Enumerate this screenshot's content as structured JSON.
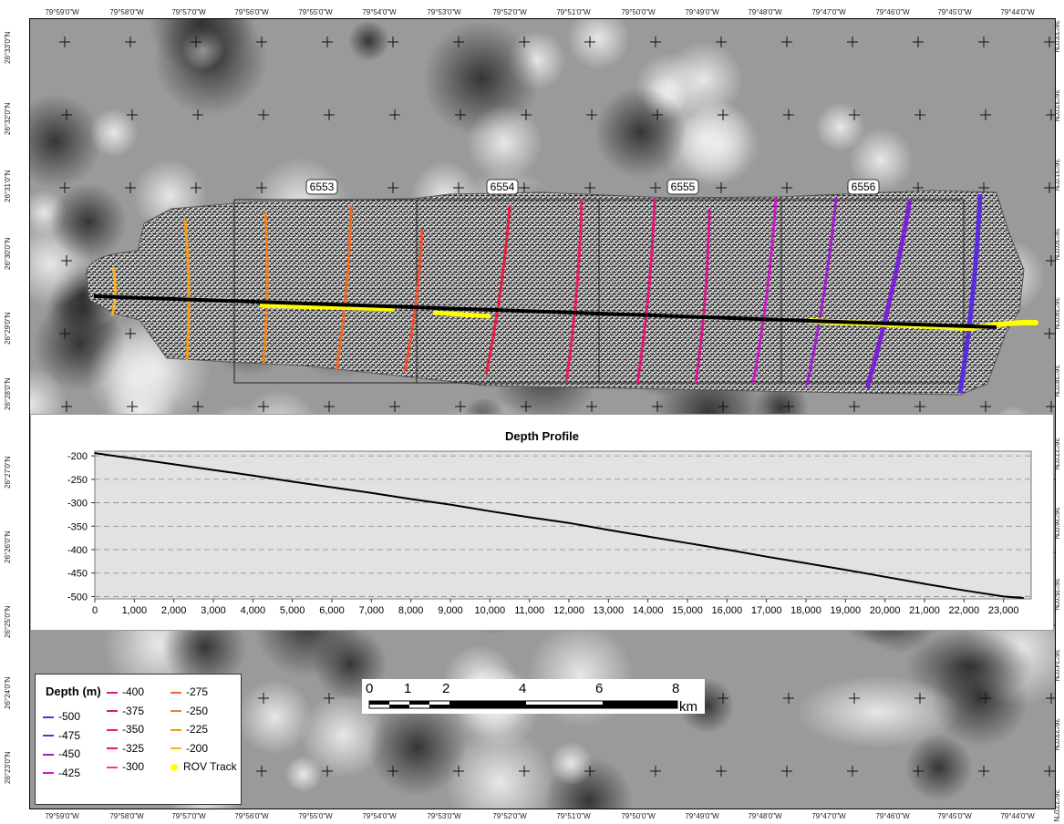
{
  "map": {
    "top_longitudes": [
      "79°59'0\"W",
      "79°58'0\"W",
      "79°57'0\"W",
      "79°56'0\"W",
      "79°55'0\"W",
      "79°54'0\"W",
      "79°53'0\"W",
      "79°52'0\"W",
      "79°51'0\"W",
      "79°50'0\"W",
      "79°49'0\"W",
      "79°48'0\"W",
      "79°47'0\"W",
      "79°46'0\"W",
      "79°45'0\"W",
      "79°44'0\"W"
    ],
    "bottom_longitudes": [
      "79°59'0\"W",
      "79°58'0\"W",
      "79°57'0\"W",
      "79°56'0\"W",
      "79°55'0\"W",
      "79°54'0\"W",
      "79°53'0\"W",
      "79°52'0\"W",
      "79°51'0\"W",
      "79°50'0\"W",
      "79°49'0\"W",
      "79°48'0\"W",
      "79°47'0\"W",
      "79°46'0\"W",
      "79°45'0\"W",
      "79°44'0\"W"
    ],
    "left_latitudes": [
      "26°33'0\"N",
      "26°32'0\"N",
      "26°31'0\"N",
      "26°30'0\"N",
      "26°29'0\"N",
      "26°28'0\"N",
      "26°27'0\"N",
      "26°26'0\"N",
      "26°25'0\"N",
      "26°24'0\"N",
      "26°23'0\"N"
    ],
    "right_latitudes": [
      "26°33'0\"N",
      "26°32'0\"N",
      "26°31'0\"N",
      "26°30'0\"N",
      "26°29'0\"N",
      "26°28'0\"N",
      "26°27'0\"N",
      "26°26'0\"N",
      "26°25'0\"N",
      "26°24'0\"N",
      "26°23'0\"N",
      "26°22'0\"N"
    ],
    "survey_labels": [
      "6553",
      "6554",
      "6555",
      "6556"
    ],
    "colors": {
      "track": "#000000",
      "rov": "#ffff00",
      "background": "#9a9a9a"
    }
  },
  "profile": {
    "title": "Depth Profile"
  },
  "chart_data": {
    "type": "line",
    "title": "Depth Profile",
    "xlabel": "",
    "ylabel": "",
    "x": [
      0,
      1000,
      2000,
      3000,
      4000,
      5000,
      6000,
      7000,
      8000,
      9000,
      10000,
      11000,
      12000,
      13000,
      14000,
      15000,
      16000,
      17000,
      18000,
      19000,
      20000,
      21000,
      22000,
      23000,
      23500
    ],
    "series": [
      {
        "values": [
          -194,
          -206,
          -218,
          -230,
          -242,
          -255,
          -267,
          -279,
          -292,
          -304,
          -318,
          -331,
          -343,
          -358,
          -372,
          -386,
          -400,
          -415,
          -429,
          -443,
          -458,
          -473,
          -487,
          -500,
          -503
        ]
      }
    ],
    "xlim": [
      0,
      23700
    ],
    "ylim": [
      -505,
      -190
    ],
    "xticks": [
      0,
      1000,
      2000,
      3000,
      4000,
      5000,
      6000,
      7000,
      8000,
      9000,
      10000,
      11000,
      12000,
      13000,
      14000,
      15000,
      16000,
      17000,
      18000,
      19000,
      20000,
      21000,
      22000,
      23000
    ],
    "xtick_labels": [
      "0",
      "1,000",
      "2,000",
      "3,000",
      "4,000",
      "5,000",
      "6,000",
      "7,000",
      "8,000",
      "9,000",
      "10,000",
      "11,000",
      "12,000",
      "13,000",
      "14,000",
      "15,000",
      "16,000",
      "17,000",
      "18,000",
      "19,000",
      "20,000",
      "21,000",
      "22,000",
      "23,000"
    ],
    "yticks": [
      -200,
      -250,
      -300,
      -350,
      -400,
      -450,
      -500
    ],
    "ytick_labels": [
      "-200",
      "-250",
      "-300",
      "-350",
      "-400",
      "-450",
      "-500"
    ],
    "grid": true
  },
  "legend": {
    "title": "Depth (m)",
    "items": [
      {
        "label": "-500",
        "color": "#5b2be0"
      },
      {
        "label": "-475",
        "color": "#7a22d8"
      },
      {
        "label": "-450",
        "color": "#a21ed0"
      },
      {
        "label": "-425",
        "color": "#c81cc4"
      },
      {
        "label": "-400",
        "color": "#d41a8e"
      },
      {
        "label": "-375",
        "color": "#e0187a"
      },
      {
        "label": "-350",
        "color": "#e8205a"
      },
      {
        "label": "-325",
        "color": "#e62040"
      },
      {
        "label": "-300",
        "color": "#ec5230"
      },
      {
        "label": "-275",
        "color": "#ee6a22"
      },
      {
        "label": "-250",
        "color": "#f0821c"
      },
      {
        "label": "-225",
        "color": "#f49a1a"
      },
      {
        "label": "-200",
        "color": "#f8b21a"
      },
      {
        "label": "ROV Track",
        "color": "#ffff00"
      }
    ]
  },
  "scalebar": {
    "ticks": [
      "0",
      "1",
      "2",
      "4",
      "6",
      "8"
    ],
    "unit": "km"
  }
}
